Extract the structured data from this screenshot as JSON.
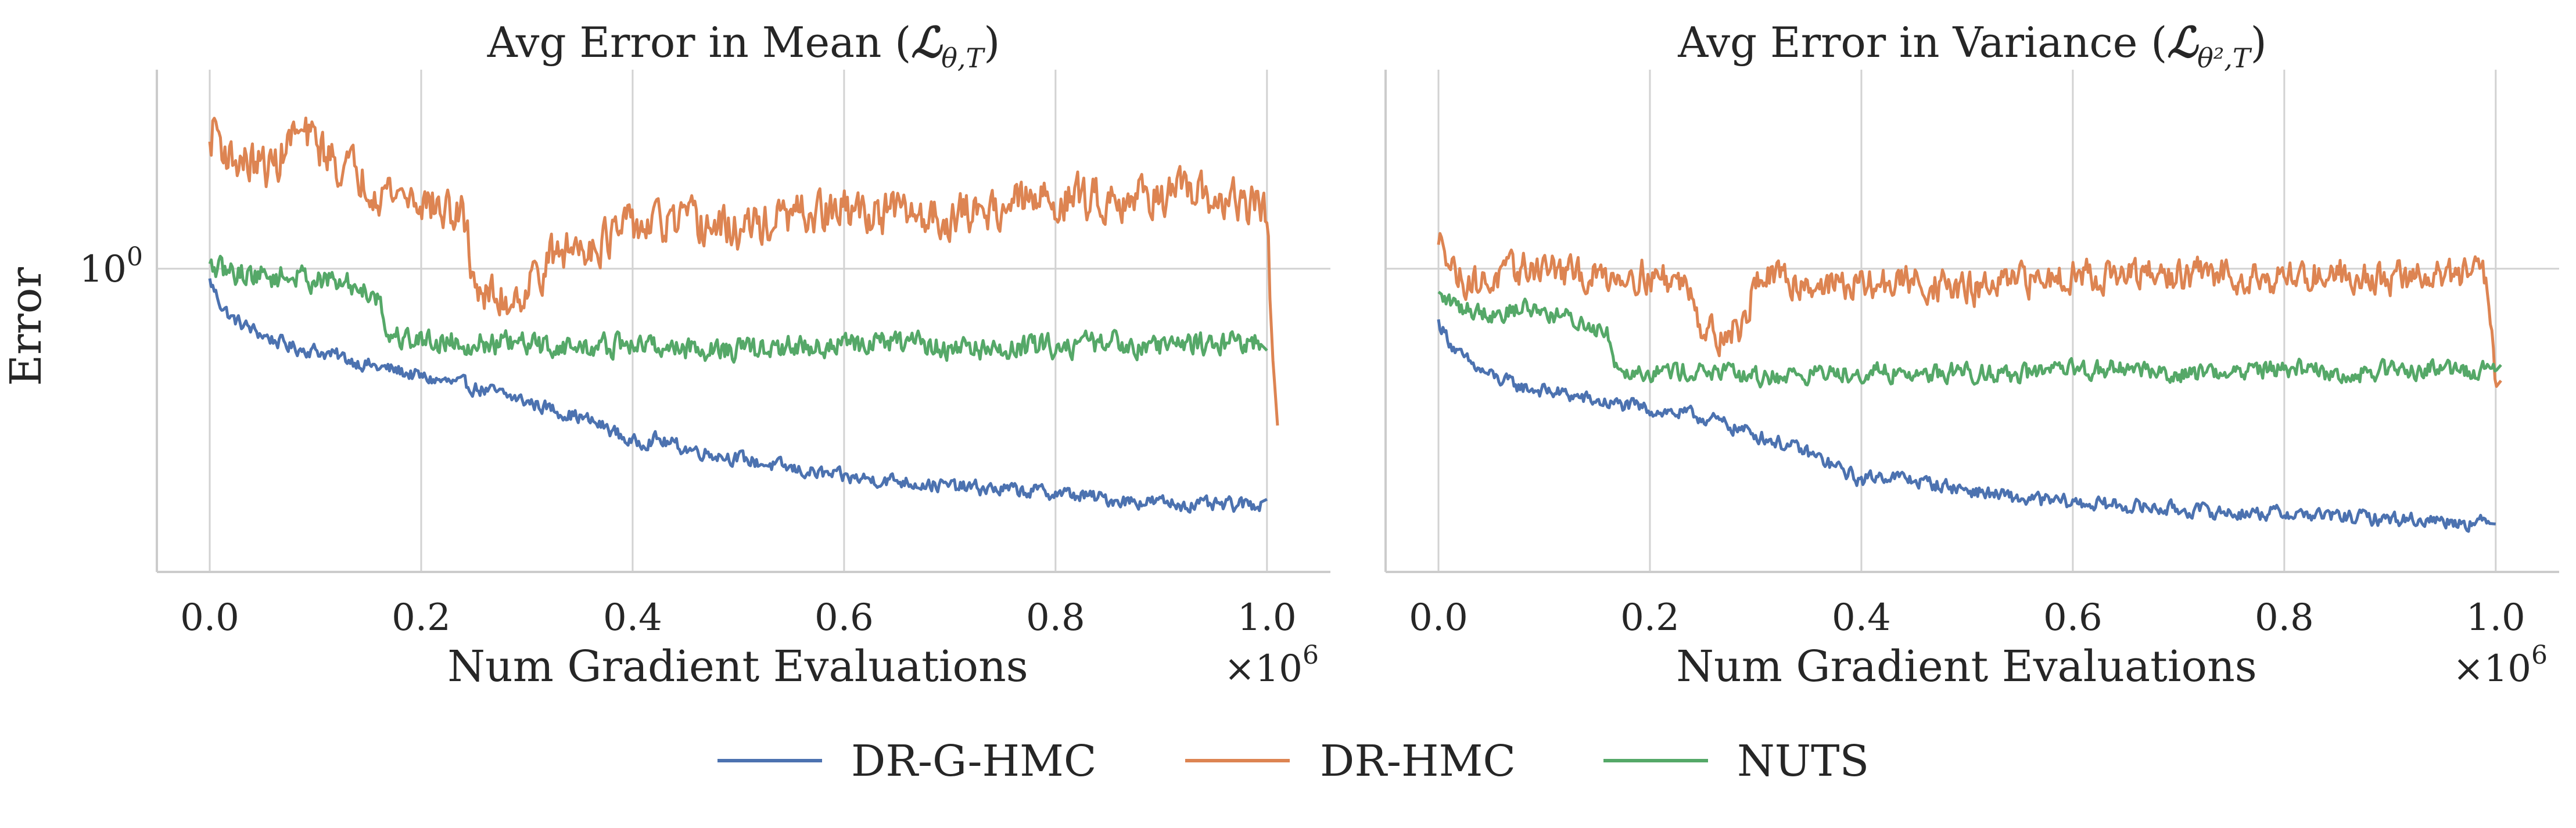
{
  "chart_data": [
    {
      "type": "line",
      "title": "Avg Error in Mean (ℒθ,T)",
      "title_parts": {
        "text": "Avg Error in Mean (",
        "sym": "ℒ",
        "sub": "θ,T",
        "close": ")"
      },
      "xlabel": "Num Gradient Evaluations",
      "ylabel": "Error",
      "x_scale_label": "×10",
      "x_scale_exp": "6",
      "x_ticks": [
        "0.0",
        "0.2",
        "0.4",
        "0.6",
        "0.8",
        "1.0"
      ],
      "x_tick_values": [
        0.0,
        0.2,
        0.4,
        0.6,
        0.8,
        1.0
      ],
      "y_ticks": [
        "10"
      ],
      "y_tick_exp": "0",
      "y_tick_values": [
        1.0
      ],
      "yscale": "log",
      "xlim": [
        -0.05,
        1.06
      ],
      "ylim": [
        0.17,
        3.2
      ],
      "grid": true,
      "series": [
        {
          "name": "DR-G-HMC",
          "color": "#4c72b0",
          "x": [
            0.0,
            0.01,
            0.02,
            0.04,
            0.06,
            0.08,
            0.1,
            0.12,
            0.14,
            0.16,
            0.18,
            0.2,
            0.25,
            0.3,
            0.35,
            0.38,
            0.4,
            0.42,
            0.45,
            0.5,
            0.55,
            0.6,
            0.65,
            0.7,
            0.75,
            0.8,
            0.85,
            0.9,
            0.95,
            0.99,
            1.0
          ],
          "y": [
            0.93,
            0.82,
            0.75,
            0.7,
            0.66,
            0.63,
            0.62,
            0.6,
            0.58,
            0.56,
            0.55,
            0.53,
            0.5,
            0.46,
            0.42,
            0.39,
            0.36,
            0.37,
            0.35,
            0.33,
            0.31,
            0.295,
            0.29,
            0.28,
            0.275,
            0.27,
            0.26,
            0.255,
            0.25,
            0.252,
            0.26
          ],
          "noise": 0.03
        },
        {
          "name": "DR-HMC",
          "color": "#dd8452",
          "x": [
            0.0,
            0.005,
            0.01,
            0.02,
            0.04,
            0.06,
            0.08,
            0.1,
            0.12,
            0.14,
            0.16,
            0.18,
            0.2,
            0.22,
            0.24,
            0.25,
            0.26,
            0.28,
            0.3,
            0.32,
            0.35,
            0.38,
            0.4,
            0.45,
            0.5,
            0.55,
            0.6,
            0.65,
            0.7,
            0.75,
            0.8,
            0.85,
            0.9,
            0.95,
            0.99,
            1.0,
            1.005,
            1.01
          ],
          "y": [
            2.0,
            2.4,
            2.1,
            1.9,
            1.85,
            1.8,
            2.2,
            2.1,
            1.85,
            1.75,
            1.6,
            1.55,
            1.5,
            1.4,
            1.35,
            0.95,
            0.85,
            0.83,
            0.9,
            1.05,
            1.15,
            1.2,
            1.28,
            1.3,
            1.25,
            1.35,
            1.4,
            1.38,
            1.35,
            1.45,
            1.5,
            1.52,
            1.55,
            1.5,
            1.45,
            1.4,
            0.62,
            0.4
          ],
          "noise": 0.09
        },
        {
          "name": "NUTS",
          "color": "#55a868",
          "x": [
            0.0,
            0.02,
            0.04,
            0.06,
            0.08,
            0.1,
            0.12,
            0.14,
            0.16,
            0.165,
            0.17,
            0.18,
            0.2,
            0.25,
            0.3,
            0.35,
            0.4,
            0.45,
            0.5,
            0.55,
            0.6,
            0.65,
            0.7,
            0.75,
            0.8,
            0.85,
            0.9,
            0.95,
            0.99,
            1.0
          ],
          "y": [
            1.0,
            0.98,
            0.97,
            0.95,
            0.96,
            0.94,
            0.92,
            0.9,
            0.86,
            0.72,
            0.68,
            0.67,
            0.66,
            0.65,
            0.64,
            0.63,
            0.64,
            0.63,
            0.62,
            0.63,
            0.64,
            0.65,
            0.63,
            0.62,
            0.64,
            0.65,
            0.64,
            0.65,
            0.66,
            0.62
          ],
          "noise": 0.05
        }
      ]
    },
    {
      "type": "line",
      "title": "Avg Error in Variance (ℒθ²,T)",
      "title_parts": {
        "text": "Avg Error in Variance (",
        "sym": "ℒ",
        "sub": "θ²,T",
        "close": ")"
      },
      "xlabel": "Num Gradient Evaluations",
      "ylabel": "",
      "x_scale_label": "×10",
      "x_scale_exp": "6",
      "x_ticks": [
        "0.0",
        "0.2",
        "0.4",
        "0.6",
        "0.8",
        "1.0"
      ],
      "x_tick_values": [
        0.0,
        0.2,
        0.4,
        0.6,
        0.8,
        1.0
      ],
      "y_ticks": [],
      "y_tick_values": [
        1.0
      ],
      "yscale": "log",
      "xlim": [
        -0.05,
        1.06
      ],
      "ylim": [
        0.17,
        3.2
      ],
      "grid": true,
      "series": [
        {
          "name": "DR-G-HMC",
          "color": "#4c72b0",
          "x": [
            0.0,
            0.01,
            0.02,
            0.04,
            0.06,
            0.08,
            0.1,
            0.12,
            0.15,
            0.2,
            0.25,
            0.3,
            0.35,
            0.39,
            0.4,
            0.42,
            0.45,
            0.5,
            0.55,
            0.6,
            0.65,
            0.7,
            0.75,
            0.8,
            0.85,
            0.9,
            0.95,
            1.0
          ],
          "y": [
            0.73,
            0.66,
            0.6,
            0.55,
            0.52,
            0.5,
            0.49,
            0.48,
            0.46,
            0.44,
            0.42,
            0.38,
            0.34,
            0.3,
            0.29,
            0.3,
            0.29,
            0.275,
            0.26,
            0.255,
            0.25,
            0.245,
            0.24,
            0.24,
            0.235,
            0.232,
            0.23,
            0.225
          ],
          "noise": 0.03
        },
        {
          "name": "DR-HMC",
          "color": "#dd8452",
          "x": [
            0.0,
            0.005,
            0.01,
            0.02,
            0.04,
            0.06,
            0.08,
            0.1,
            0.12,
            0.15,
            0.18,
            0.2,
            0.22,
            0.24,
            0.25,
            0.27,
            0.29,
            0.3,
            0.35,
            0.4,
            0.45,
            0.5,
            0.55,
            0.6,
            0.65,
            0.7,
            0.75,
            0.8,
            0.85,
            0.9,
            0.95,
            0.99,
            1.0,
            1.005
          ],
          "y": [
            1.1,
            1.25,
            1.05,
            0.95,
            0.92,
            0.95,
            1.0,
            1.02,
            0.97,
            0.95,
            0.98,
            0.96,
            0.94,
            0.9,
            0.7,
            0.68,
            0.72,
            0.95,
            0.92,
            0.9,
            0.93,
            0.88,
            0.92,
            0.98,
            0.95,
            0.96,
            0.97,
            0.95,
            0.98,
            0.94,
            0.97,
            0.96,
            0.5,
            0.52
          ],
          "noise": 0.07
        },
        {
          "name": "NUTS",
          "color": "#55a868",
          "x": [
            0.0,
            0.02,
            0.04,
            0.06,
            0.08,
            0.1,
            0.12,
            0.14,
            0.16,
            0.165,
            0.17,
            0.2,
            0.25,
            0.3,
            0.35,
            0.4,
            0.45,
            0.5,
            0.55,
            0.6,
            0.65,
            0.7,
            0.75,
            0.8,
            0.85,
            0.9,
            0.95,
            1.0,
            1.005
          ],
          "y": [
            0.85,
            0.8,
            0.78,
            0.77,
            0.8,
            0.78,
            0.75,
            0.72,
            0.7,
            0.6,
            0.56,
            0.55,
            0.55,
            0.53,
            0.54,
            0.55,
            0.54,
            0.55,
            0.54,
            0.55,
            0.56,
            0.54,
            0.55,
            0.56,
            0.54,
            0.55,
            0.56,
            0.55,
            0.57
          ],
          "noise": 0.04
        }
      ]
    }
  ],
  "legend": {
    "placement": "bottom-center",
    "entries": [
      {
        "label": "DR-G-HMC",
        "color": "#4c72b0"
      },
      {
        "label": "DR-HMC",
        "color": "#dd8452"
      },
      {
        "label": "NUTS",
        "color": "#55a868"
      }
    ]
  }
}
